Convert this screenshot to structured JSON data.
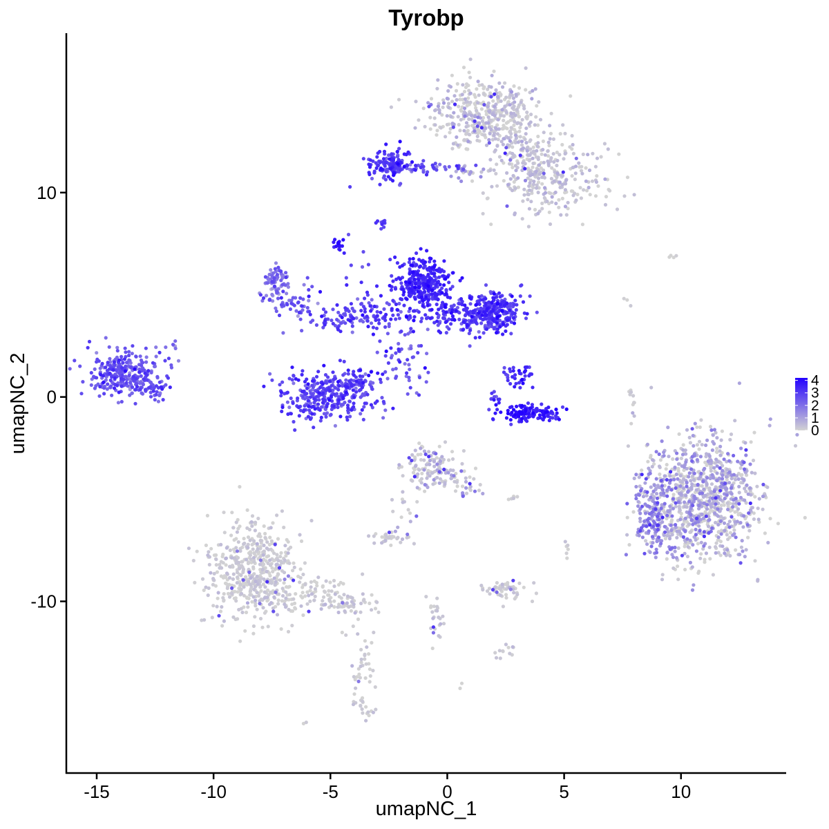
{
  "chart_data": {
    "type": "scatter",
    "title": "Tyrobp",
    "xlabel": "umapNC_1",
    "ylabel": "umapNC_2",
    "xlim": [
      -16.3,
      14.5
    ],
    "ylim": [
      -18.4,
      17.8
    ],
    "x_ticks": [
      -15,
      -10,
      -5,
      0,
      5,
      10
    ],
    "x_tick_labels": [
      "-15",
      "-10",
      "-5",
      "0",
      "5",
      "10"
    ],
    "y_ticks": [
      -10,
      0,
      10
    ],
    "y_tick_labels": [
      "-10",
      "0",
      "10"
    ],
    "grid": false,
    "legend_position": "right",
    "color_scale": {
      "low": "#d3d3d3",
      "high": "#2200ff",
      "min": 0,
      "max": 4.2,
      "legend_ticks": [
        0,
        1,
        2,
        3,
        4
      ],
      "legend_tick_labels": [
        "0",
        "1",
        "2",
        "3",
        "4"
      ]
    },
    "clusters": [
      {
        "x": 1.8,
        "y": 13.8,
        "sx": 1.2,
        "sy": 0.9,
        "n": 450,
        "expr": 0.2,
        "spread": 0.4,
        "hi_frac": 0.04
      },
      {
        "x": 4.5,
        "y": 10.5,
        "sx": 1.2,
        "sy": 0.9,
        "n": 240,
        "expr": 0.2,
        "spread": 0.3,
        "hi_frac": 0.03
      },
      {
        "x": 3.5,
        "y": 11.8,
        "sx": 0.8,
        "sy": 0.5,
        "n": 90,
        "expr": 0.3,
        "spread": 0.3,
        "hi_frac": 0.03
      },
      {
        "x": -2.4,
        "y": 11.4,
        "sx": 0.45,
        "sy": 0.4,
        "n": 130,
        "expr": 3.0,
        "spread": 0.5,
        "hi_frac": 0.0
      },
      {
        "x": -0.8,
        "y": 11.2,
        "sx": 0.9,
        "sy": 0.12,
        "n": 45,
        "expr": 2.4,
        "spread": 0.6,
        "hi_frac": 0.0
      },
      {
        "x": 0.9,
        "y": 11.0,
        "sx": 0.4,
        "sy": 0.2,
        "n": 20,
        "expr": 0.8,
        "spread": 0.6,
        "hi_frac": 0.0
      },
      {
        "x": -2.8,
        "y": 8.5,
        "sx": 0.15,
        "sy": 0.1,
        "n": 10,
        "expr": 3.0,
        "spread": 0.3,
        "hi_frac": 0.0
      },
      {
        "x": -4.6,
        "y": 7.4,
        "sx": 0.12,
        "sy": 0.2,
        "n": 16,
        "expr": 3.7,
        "spread": 0.3,
        "hi_frac": 0.0
      },
      {
        "x": -1.0,
        "y": 5.5,
        "sx": 0.6,
        "sy": 0.6,
        "n": 300,
        "expr": 3.4,
        "spread": 0.4,
        "hi_frac": 0.0
      },
      {
        "x": 2.0,
        "y": 4.1,
        "sx": 0.6,
        "sy": 0.5,
        "n": 250,
        "expr": 3.0,
        "spread": 0.5,
        "hi_frac": 0.0
      },
      {
        "x": 0.5,
        "y": 4.0,
        "sx": 0.7,
        "sy": 0.5,
        "n": 110,
        "expr": 3.1,
        "spread": 0.5,
        "hi_frac": 0.0
      },
      {
        "x": -2.5,
        "y": 4.0,
        "sx": 0.8,
        "sy": 0.45,
        "n": 70,
        "expr": 2.9,
        "spread": 0.5,
        "hi_frac": 0.0
      },
      {
        "x": -4.5,
        "y": 3.8,
        "sx": 0.6,
        "sy": 0.3,
        "n": 55,
        "expr": 2.7,
        "spread": 0.5,
        "hi_frac": 0.0
      },
      {
        "x": -7.3,
        "y": 5.5,
        "sx": 0.3,
        "sy": 0.5,
        "n": 80,
        "expr": 1.9,
        "spread": 0.5,
        "hi_frac": 0.0
      },
      {
        "x": -6.4,
        "y": 4.6,
        "sx": 0.5,
        "sy": 0.5,
        "n": 45,
        "expr": 2.5,
        "spread": 0.5,
        "hi_frac": 0.0
      },
      {
        "x": -3.7,
        "y": 5.5,
        "sx": 0.4,
        "sy": 1.0,
        "n": 25,
        "expr": 2.6,
        "spread": 0.5,
        "hi_frac": 0.0
      },
      {
        "x": -1.8,
        "y": 1.8,
        "sx": 0.7,
        "sy": 0.8,
        "n": 55,
        "expr": 2.5,
        "spread": 0.6,
        "hi_frac": 0.0
      },
      {
        "x": -5.0,
        "y": 0.0,
        "sx": 1.0,
        "sy": 0.6,
        "n": 330,
        "expr": 2.8,
        "spread": 0.5,
        "hi_frac": 0.0
      },
      {
        "x": -3.8,
        "y": 0.8,
        "sx": 0.4,
        "sy": 0.4,
        "n": 35,
        "expr": 2.8,
        "spread": 0.5,
        "hi_frac": 0.0
      },
      {
        "x": 3.5,
        "y": -0.8,
        "sx": 0.7,
        "sy": 0.22,
        "n": 130,
        "expr": 3.6,
        "spread": 0.4,
        "hi_frac": 0.0
      },
      {
        "x": 3.1,
        "y": 0.9,
        "sx": 0.35,
        "sy": 0.35,
        "n": 35,
        "expr": 3.2,
        "spread": 0.4,
        "hi_frac": 0.0
      },
      {
        "x": 2.2,
        "y": -0.2,
        "sx": 0.3,
        "sy": 0.25,
        "n": 14,
        "expr": 3.1,
        "spread": 0.4,
        "hi_frac": 0.0
      },
      {
        "x": -13.8,
        "y": 1.2,
        "sx": 0.8,
        "sy": 0.6,
        "n": 280,
        "expr": 2.4,
        "spread": 0.5,
        "hi_frac": 0.0
      },
      {
        "x": -12.6,
        "y": 0.3,
        "sx": 0.4,
        "sy": 0.4,
        "n": 30,
        "expr": 2.5,
        "spread": 0.5,
        "hi_frac": 0.0
      },
      {
        "x": -11.7,
        "y": 2.6,
        "sx": 0.2,
        "sy": 0.2,
        "n": 6,
        "expr": 2.0,
        "spread": 0.5,
        "hi_frac": 0.0
      },
      {
        "x": 10.9,
        "y": -5.0,
        "sx": 1.25,
        "sy": 1.5,
        "n": 950,
        "expr": 0.4,
        "spread": 0.7,
        "hi_frac": 0.05
      },
      {
        "x": 8.8,
        "y": -5.8,
        "sx": 0.45,
        "sy": 1.0,
        "n": 160,
        "expr": 1.3,
        "spread": 0.6,
        "hi_frac": 0.03
      },
      {
        "x": -8.4,
        "y": -8.5,
        "sx": 0.9,
        "sy": 1.2,
        "n": 480,
        "expr": 0.1,
        "spread": 0.2,
        "hi_frac": 0.02
      },
      {
        "x": -6.0,
        "y": -9.6,
        "sx": 1.0,
        "sy": 0.45,
        "n": 110,
        "expr": 0.1,
        "spread": 0.2,
        "hi_frac": 0.02
      },
      {
        "x": -4.2,
        "y": -10.2,
        "sx": 0.5,
        "sy": 0.3,
        "n": 40,
        "expr": 0.2,
        "spread": 0.2,
        "hi_frac": 0.05
      },
      {
        "x": -3.7,
        "y": -12.7,
        "sx": 0.3,
        "sy": 1.2,
        "n": 40,
        "expr": 0.1,
        "spread": 0.2,
        "hi_frac": 0.05
      },
      {
        "x": -3.6,
        "y": -15.0,
        "sx": 0.25,
        "sy": 0.3,
        "n": 20,
        "expr": 0.1,
        "spread": 0.2,
        "hi_frac": 0.05
      },
      {
        "x": -0.7,
        "y": -3.5,
        "sx": 0.6,
        "sy": 0.55,
        "n": 130,
        "expr": 0.3,
        "spread": 0.4,
        "hi_frac": 0.1
      },
      {
        "x": 0.8,
        "y": -4.3,
        "sx": 0.5,
        "sy": 0.4,
        "n": 25,
        "expr": 0.5,
        "spread": 0.5,
        "hi_frac": 0.1
      },
      {
        "x": -1.8,
        "y": -5.5,
        "sx": 0.3,
        "sy": 0.7,
        "n": 16,
        "expr": 0.3,
        "spread": 0.3,
        "hi_frac": 0.05
      },
      {
        "x": -2.5,
        "y": -6.9,
        "sx": 0.4,
        "sy": 0.18,
        "n": 35,
        "expr": 0.1,
        "spread": 0.2,
        "hi_frac": 0.05
      },
      {
        "x": 2.6,
        "y": -9.5,
        "sx": 0.5,
        "sy": 0.25,
        "n": 55,
        "expr": 0.1,
        "spread": 0.2,
        "hi_frac": 0.05
      },
      {
        "x": -0.5,
        "y": -10.8,
        "sx": 0.2,
        "sy": 0.8,
        "n": 25,
        "expr": 0.2,
        "spread": 0.2,
        "hi_frac": 0.05
      },
      {
        "x": 2.4,
        "y": -12.4,
        "sx": 0.25,
        "sy": 0.25,
        "n": 12,
        "expr": 0.2,
        "spread": 0.2,
        "hi_frac": 0.05
      },
      {
        "x": 7.9,
        "y": -0.1,
        "sx": 0.1,
        "sy": 0.4,
        "n": 10,
        "expr": 0.1,
        "spread": 0.2,
        "hi_frac": 0.0
      },
      {
        "x": 5.1,
        "y": -7.3,
        "sx": 0.15,
        "sy": 0.25,
        "n": 6,
        "expr": 0.1,
        "spread": 0.2,
        "hi_frac": 0.0
      },
      {
        "x": 9.6,
        "y": 6.8,
        "sx": 0.25,
        "sy": 0.08,
        "n": 4,
        "expr": 0.0,
        "spread": 0.1,
        "hi_frac": 0.0
      },
      {
        "x": 2.8,
        "y": -5.0,
        "sx": 0.25,
        "sy": 0.1,
        "n": 6,
        "expr": 0.1,
        "spread": 0.2,
        "hi_frac": 0.0
      },
      {
        "x": 0.6,
        "y": -14.1,
        "sx": 0.1,
        "sy": 0.1,
        "n": 2,
        "expr": 0.1,
        "spread": 0.2,
        "hi_frac": 0.0
      },
      {
        "x": -6.0,
        "y": -16.1,
        "sx": 0.1,
        "sy": 0.08,
        "n": 2,
        "expr": 0.1,
        "spread": 0.2,
        "hi_frac": 0.0
      },
      {
        "x": 7.6,
        "y": 4.6,
        "sx": 0.15,
        "sy": 0.3,
        "n": 3,
        "expr": 0.0,
        "spread": 0.1,
        "hi_frac": 0.0
      }
    ]
  }
}
